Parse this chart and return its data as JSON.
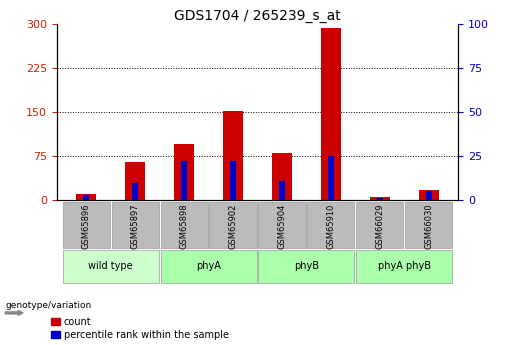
{
  "title": "GDS1704 / 265239_s_at",
  "samples": [
    "GSM65896",
    "GSM65897",
    "GSM65898",
    "GSM65902",
    "GSM65904",
    "GSM65910",
    "GSM66029",
    "GSM66030"
  ],
  "counts": [
    10,
    65,
    95,
    152,
    80,
    293,
    5,
    18
  ],
  "percentiles": [
    3,
    10,
    22,
    22,
    11,
    25,
    1,
    5
  ],
  "bar_color": "#cc0000",
  "blue_color": "#0000cc",
  "left_yticks": [
    0,
    75,
    150,
    225,
    300
  ],
  "right_yticks": [
    0,
    25,
    50,
    75,
    100
  ],
  "left_ylim": [
    0,
    300
  ],
  "right_ylim": [
    0,
    100
  ],
  "left_tick_color": "#cc2200",
  "right_tick_color": "#0000cc",
  "title_fontsize": 10,
  "tick_label_bg": "#bbbbbb",
  "genotype_label": "genotype/variation",
  "legend_count": "count",
  "legend_percentile": "percentile rank within the sample",
  "group_info": [
    {
      "name": "wild type",
      "color": "#ccffcc",
      "start": 0,
      "end": 1
    },
    {
      "name": "phyA",
      "color": "#aaffaa",
      "start": 2,
      "end": 3
    },
    {
      "name": "phyB",
      "color": "#aaffaa",
      "start": 4,
      "end": 5
    },
    {
      "name": "phyA phyB",
      "color": "#aaffaa",
      "start": 6,
      "end": 7
    }
  ]
}
